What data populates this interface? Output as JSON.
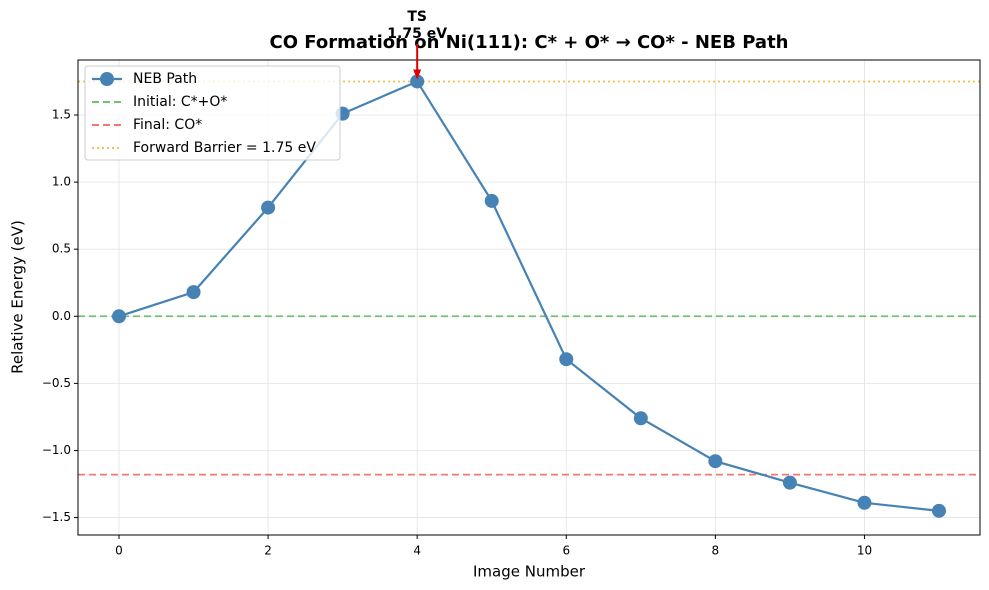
{
  "chart_data": {
    "type": "line",
    "title": "CO Formation on Ni(111): C* + O* → CO* - NEB Path",
    "x_label": "Image Number",
    "y_label": "Relative Energy (eV)",
    "x": [
      0,
      1,
      2,
      3,
      4,
      5,
      6,
      7,
      8,
      9,
      10,
      11
    ],
    "series": [
      {
        "name": "NEB Path",
        "color": "#4682b4",
        "values": [
          0,
          0.18,
          0.81,
          1.51,
          1.75,
          0.86,
          -0.32,
          -0.76,
          -1.08,
          -1.24,
          -1.39,
          -1.45
        ]
      }
    ],
    "reference_lines": [
      {
        "name": "Initial: C*+O*",
        "value": 0,
        "color": "#5cb85c",
        "style": "dashed"
      },
      {
        "name": "Final: CO*",
        "value": -1.18,
        "color": "#f0625a",
        "style": "dashed"
      },
      {
        "name": "Forward Barrier = 1.75 eV",
        "value": 1.75,
        "color": "#f5b52e",
        "style": "dotted"
      }
    ],
    "annotation": {
      "text": [
        "TS",
        "1.75 eV"
      ],
      "x": 4,
      "y": 1.75,
      "color": "#e00000"
    },
    "xlim": [
      -0.55,
      11.55
    ],
    "ylim": [
      -1.63,
      1.91
    ],
    "xticks": [
      0,
      2,
      4,
      6,
      8,
      10
    ],
    "yticks": [
      {
        "value": -1.5,
        "label": "−1.5"
      },
      {
        "value": -1,
        "label": "−1.0"
      },
      {
        "value": -0.5,
        "label": "−0.5"
      },
      {
        "value": 0,
        "label": "0.0"
      },
      0.5,
      {
        "value": 1,
        "label": "1.0"
      },
      1.5
    ],
    "grid": true,
    "legend": "upper left"
  }
}
